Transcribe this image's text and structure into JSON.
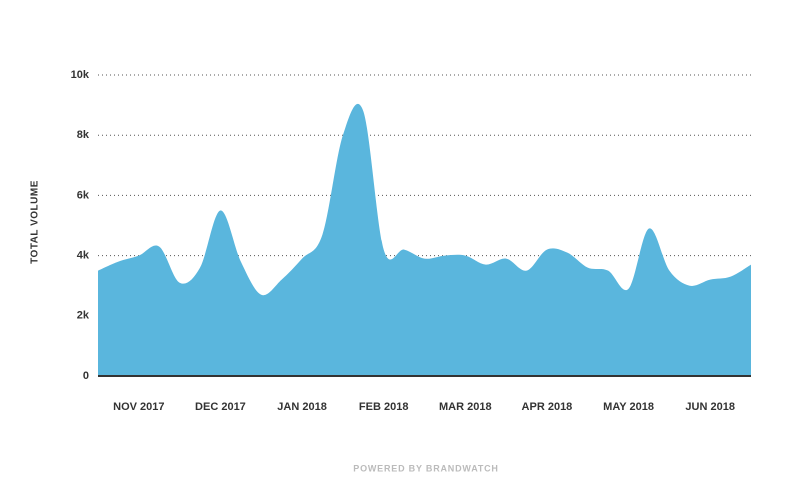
{
  "chart_data": {
    "type": "area",
    "y_label": "TOTAL VOLUME",
    "footer": "POWERED BY BRANDWATCH",
    "categories": [
      null,
      null,
      "NOV 2017",
      null,
      null,
      null,
      "DEC 2017",
      null,
      null,
      null,
      "JAN 2018",
      null,
      null,
      null,
      "FEB 2018",
      null,
      null,
      null,
      "MAR 2018",
      null,
      null,
      null,
      "APR 2018",
      null,
      null,
      null,
      "MAY 2018",
      null,
      null,
      null,
      "JUN 2018",
      null,
      null
    ],
    "series": [
      {
        "name": "Total volume",
        "color": "#5ab6dd",
        "values": [
          3500,
          3800,
          4000,
          4300,
          3100,
          3600,
          5500,
          3800,
          2700,
          3200,
          3900,
          4700,
          8000,
          8800,
          4200,
          4200,
          3900,
          4000,
          4000,
          3700,
          3900,
          3500,
          4200,
          4100,
          3600,
          3500,
          2900,
          4900,
          3500,
          3000,
          3200,
          3300,
          3700
        ]
      }
    ],
    "ylim": [
      0,
      10000
    ],
    "yticks": [
      0,
      {
        "value": 2000,
        "label": "2k"
      },
      {
        "value": 4000,
        "label": "4k"
      },
      {
        "value": 6000,
        "label": "6k"
      },
      {
        "value": 8000,
        "label": "8k"
      },
      {
        "value": 10000,
        "label": "10k"
      }
    ],
    "grid": true
  }
}
